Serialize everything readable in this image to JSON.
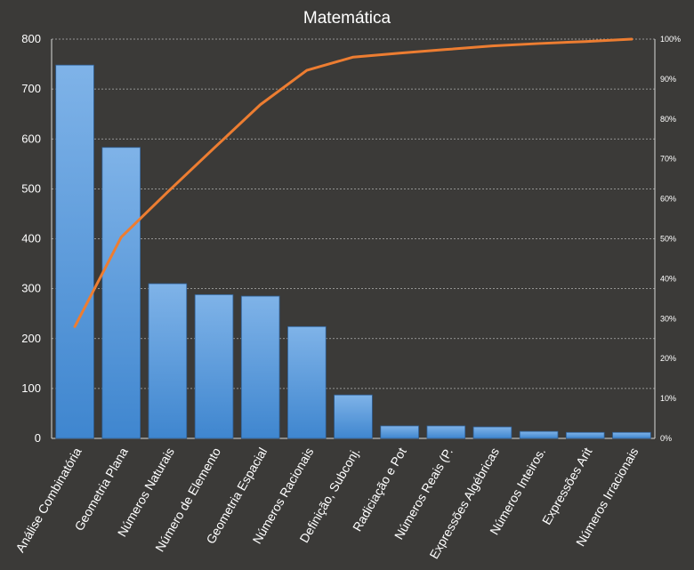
{
  "chart_data": {
    "type": "bar",
    "title": "Matemática",
    "categories": [
      "Análise Combinatória",
      "Geometria Plana",
      "Números Naturais",
      "Número de Elemento",
      "Geometria Espacial",
      "Números Racionais",
      "Definição, Subconj.",
      "Radiciação e Pot",
      "Números Reais (P.",
      "Expressões Algébricas",
      "Números Inteiros.",
      "Expressões Arit",
      "Números Irracionais"
    ],
    "series": [
      {
        "type": "bar",
        "color": "#4a90d9",
        "values": [
          748,
          583,
          310,
          288,
          285,
          224,
          87,
          25,
          25,
          23,
          14,
          12,
          12
        ]
      },
      {
        "type": "line",
        "axis": "secondary",
        "color": "#ed7d31",
        "values": [
          28,
          50.4,
          61.7,
          72.7,
          83.6,
          92.2,
          95.5,
          96.5,
          97.4,
          98.3,
          98.9,
          99.4,
          100
        ]
      }
    ],
    "y_axis": {
      "min": 0,
      "max": 800,
      "ticks": [
        "0",
        "100",
        "200",
        "300",
        "400",
        "500",
        "600",
        "700",
        "800"
      ]
    },
    "y2_axis": {
      "min": 0,
      "max": 100,
      "ticks": [
        "0%",
        "10%",
        "20%",
        "30%",
        "40%",
        "50%",
        "60%",
        "70%",
        "80%",
        "90%",
        "100%"
      ]
    },
    "grid": true,
    "legend": "none"
  }
}
